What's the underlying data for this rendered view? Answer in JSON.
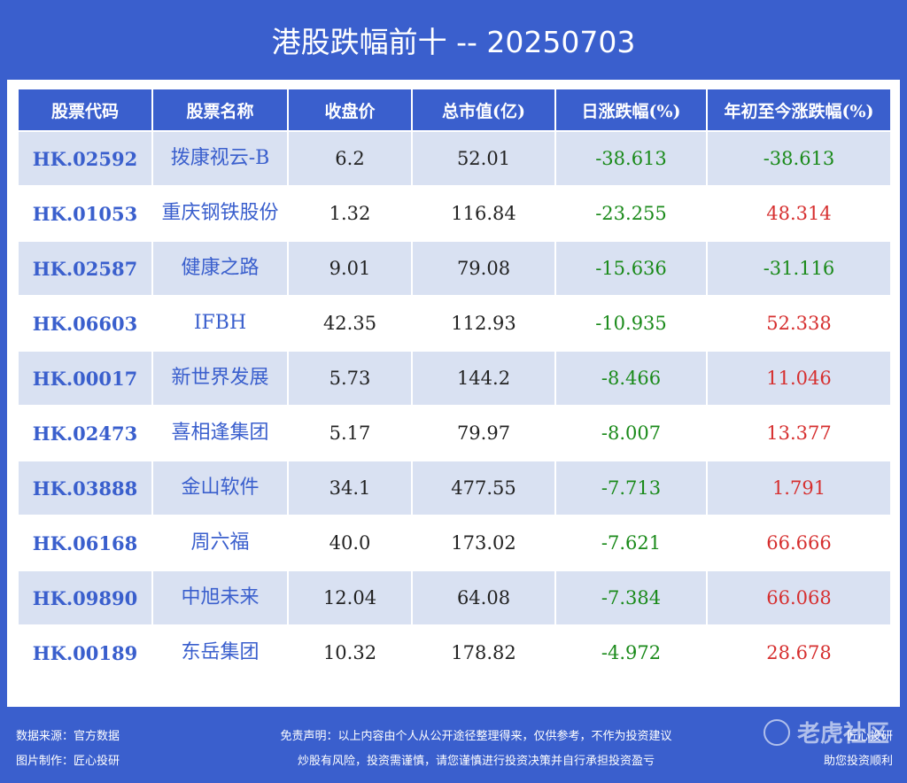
{
  "title": "港股跌幅前十 -- 20250703",
  "table": {
    "headers": [
      "股票代码",
      "股票名称",
      "收盘价",
      "总市值(亿)",
      "日涨跌幅(%)",
      "年初至今涨跌幅(%)"
    ],
    "rows": [
      {
        "code": "HK.02592",
        "name": "拨康视云-B",
        "close": "6.2",
        "mcap": "52.01",
        "day": "-38.613",
        "ytd": "-38.613"
      },
      {
        "code": "HK.01053",
        "name": "重庆钢铁股份",
        "close": "1.32",
        "mcap": "116.84",
        "day": "-23.255",
        "ytd": "48.314"
      },
      {
        "code": "HK.02587",
        "name": "健康之路",
        "close": "9.01",
        "mcap": "79.08",
        "day": "-15.636",
        "ytd": "-31.116"
      },
      {
        "code": "HK.06603",
        "name": "IFBH",
        "close": "42.35",
        "mcap": "112.93",
        "day": "-10.935",
        "ytd": "52.338"
      },
      {
        "code": "HK.00017",
        "name": "新世界发展",
        "close": "5.73",
        "mcap": "144.2",
        "day": "-8.466",
        "ytd": "11.046"
      },
      {
        "code": "HK.02473",
        "name": "喜相逢集团",
        "close": "5.17",
        "mcap": "79.97",
        "day": "-8.007",
        "ytd": "13.377"
      },
      {
        "code": "HK.03888",
        "name": "金山软件",
        "close": "34.1",
        "mcap": "477.55",
        "day": "-7.713",
        "ytd": "1.791"
      },
      {
        "code": "HK.06168",
        "name": "周六福",
        "close": "40.0",
        "mcap": "173.02",
        "day": "-7.621",
        "ytd": "66.666"
      },
      {
        "code": "HK.09890",
        "name": "中旭未来",
        "close": "12.04",
        "mcap": "64.08",
        "day": "-7.384",
        "ytd": "66.068"
      },
      {
        "code": "HK.00189",
        "name": "东岳集团",
        "close": "10.32",
        "mcap": "178.82",
        "day": "-4.972",
        "ytd": "28.678"
      }
    ]
  },
  "footer": {
    "source": "数据来源：官方数据",
    "made_by": "图片制作：匠心投研",
    "disclaimer1": "免责声明：以上内容由个人从公开途径整理得来，仅供参考，不作为投资建议",
    "disclaimer2": "炒股有风险，投资需谨慎，请您谨慎进行投资决策并自行承担投资盈亏",
    "right1": "匠心投研",
    "right2": "助您投资顺利"
  },
  "watermark": {
    "text": "老虎社区",
    "sub": "@匠心投研"
  },
  "colors": {
    "primary": "#3a5fcd",
    "stripe": "#d9e1f2",
    "negative": "#1a8a1a",
    "positive": "#d62f2f"
  }
}
